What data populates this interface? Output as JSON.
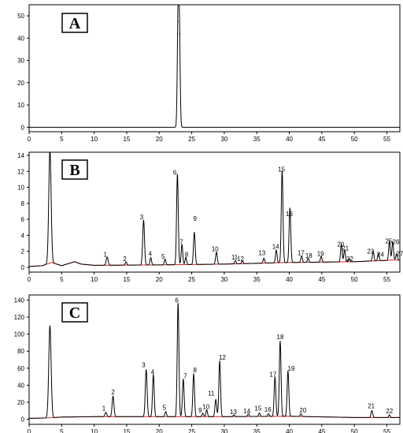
{
  "chart_data": [
    {
      "type": "line",
      "panel_label": "A",
      "xlim": [
        0,
        57
      ],
      "ylim": [
        -2,
        55
      ],
      "x_ticks": [
        0,
        5,
        10,
        15,
        20,
        25,
        30,
        35,
        40,
        45,
        50,
        55
      ],
      "y_ticks": [
        0,
        10,
        20,
        30,
        40,
        50
      ],
      "baseline": [],
      "peaks": [
        {
          "label": "",
          "x": 22.9,
          "height": 47.5,
          "width": 0.12
        },
        {
          "label": "",
          "x": 23.1,
          "height": 42.0,
          "width": 0.12
        }
      ]
    },
    {
      "type": "line",
      "panel_label": "B",
      "xlim": [
        0,
        57
      ],
      "ylim": [
        -0.6,
        14.4
      ],
      "x_ticks": [
        0,
        5,
        10,
        15,
        20,
        25,
        30,
        35,
        40,
        45,
        50,
        55
      ],
      "y_ticks": [
        0,
        2,
        4,
        6,
        8,
        10,
        12,
        14
      ],
      "baseline": [
        [
          0,
          0.1
        ],
        [
          2,
          0.2
        ],
        [
          3.5,
          0.6
        ],
        [
          5,
          0.2
        ],
        [
          7,
          0.7
        ],
        [
          8,
          0.4
        ],
        [
          10,
          0.25
        ],
        [
          20,
          0.3
        ],
        [
          30,
          0.4
        ],
        [
          40,
          0.6
        ],
        [
          50,
          0.7
        ],
        [
          56,
          0.9
        ],
        [
          57,
          0.9
        ]
      ],
      "peaks": [
        {
          "label": "",
          "x": 3.2,
          "height": 14.2,
          "width": 0.18
        },
        {
          "label": "1",
          "x": 12.0,
          "height": 1.0,
          "width": 0.15
        },
        {
          "label": "2",
          "x": 14.9,
          "height": 0.4,
          "width": 0.12
        },
        {
          "label": "3",
          "x": 17.6,
          "height": 5.6,
          "width": 0.14
        },
        {
          "label": "4",
          "x": 18.7,
          "height": 0.9,
          "width": 0.12
        },
        {
          "label": "5",
          "x": 20.9,
          "height": 0.7,
          "width": 0.12
        },
        {
          "label": "6",
          "x": 22.8,
          "height": 11.3,
          "width": 0.13
        },
        {
          "label": "7",
          "x": 23.5,
          "height": 2.5,
          "width": 0.12
        },
        {
          "label": "8",
          "x": 24.1,
          "height": 0.9,
          "width": 0.12
        },
        {
          "label": "9",
          "x": 25.4,
          "height": 4.0,
          "width": 0.13
        },
        {
          "label": "10",
          "x": 28.8,
          "height": 1.5,
          "width": 0.13
        },
        {
          "label": "11",
          "x": 31.7,
          "height": 0.4,
          "width": 0.12
        },
        {
          "label": "12",
          "x": 32.8,
          "height": 0.35,
          "width": 0.12
        },
        {
          "label": "13",
          "x": 36.1,
          "height": 0.6,
          "width": 0.12
        },
        {
          "label": "14",
          "x": 38.0,
          "height": 1.6,
          "width": 0.12
        },
        {
          "label": "15",
          "x": 38.9,
          "height": 11.5,
          "width": 0.13
        },
        {
          "label": "16",
          "x": 40.1,
          "height": 6.8,
          "width": 0.13
        },
        {
          "label": "17",
          "x": 41.9,
          "height": 0.8,
          "width": 0.12
        },
        {
          "label": "18",
          "x": 42.9,
          "height": 0.5,
          "width": 0.12
        },
        {
          "label": "19",
          "x": 44.9,
          "height": 0.7,
          "width": 0.12
        },
        {
          "label": "20",
          "x": 48.0,
          "height": 2.2,
          "width": 0.12
        },
        {
          "label": "21",
          "x": 48.5,
          "height": 1.5,
          "width": 0.12
        },
        {
          "label": "22",
          "x": 49.2,
          "height": 0.4,
          "width": 0.12
        },
        {
          "label": "23",
          "x": 52.9,
          "height": 1.2,
          "width": 0.12
        },
        {
          "label": "24",
          "x": 53.7,
          "height": 0.9,
          "width": 0.12
        },
        {
          "label": "25",
          "x": 55.4,
          "height": 2.4,
          "width": 0.12
        },
        {
          "label": "26",
          "x": 55.9,
          "height": 2.3,
          "width": 0.12
        },
        {
          "label": "27",
          "x": 56.5,
          "height": 0.8,
          "width": 0.12
        }
      ],
      "label_pos": {
        "1": [
          11.7,
          1.3
        ],
        "2": [
          14.7,
          0.8
        ],
        "3": [
          17.3,
          6.0
        ],
        "4": [
          18.6,
          1.4
        ],
        "5": [
          20.6,
          1.1
        ],
        "6": [
          22.4,
          11.6
        ],
        "7": [
          23.4,
          2.9
        ],
        "8": [
          24.2,
          1.3
        ],
        "9": [
          25.5,
          5.8
        ],
        "10": [
          28.6,
          2.0
        ],
        "11": [
          31.6,
          1.0
        ],
        "12": [
          32.5,
          0.8
        ],
        "13": [
          35.8,
          1.5
        ],
        "14": [
          37.9,
          2.3
        ],
        "15": [
          38.8,
          12.0
        ],
        "16": [
          40.0,
          6.4
        ],
        "17": [
          41.8,
          1.5
        ],
        "18": [
          43.0,
          1.2
        ],
        "19": [
          44.8,
          1.4
        ],
        "20": [
          47.9,
          2.6
        ],
        "21": [
          48.6,
          2.1
        ],
        "22": [
          49.3,
          0.8
        ],
        "23": [
          52.5,
          1.7
        ],
        "24": [
          54.0,
          1.3
        ],
        "25": [
          55.3,
          3.0
        ],
        "26": [
          56.4,
          2.9
        ],
        "27": [
          57.0,
          1.4
        ]
      }
    },
    {
      "type": "line",
      "panel_label": "C",
      "xlim": [
        0,
        57
      ],
      "ylim": [
        -6,
        146
      ],
      "x_ticks": [
        0,
        5,
        10,
        15,
        20,
        25,
        30,
        35,
        40,
        45,
        50,
        55
      ],
      "y_ticks": [
        0,
        20,
        40,
        60,
        80,
        100,
        120,
        140
      ],
      "baseline": [
        [
          0,
          1
        ],
        [
          3,
          1.5
        ],
        [
          5,
          2.5
        ],
        [
          10,
          3
        ],
        [
          20,
          3
        ],
        [
          30,
          3
        ],
        [
          40,
          3.5
        ],
        [
          50,
          2
        ],
        [
          57,
          2
        ]
      ],
      "peaks": [
        {
          "label": "",
          "x": 3.2,
          "height": 108,
          "width": 0.18
        },
        {
          "label": "1",
          "x": 11.8,
          "height": 5,
          "width": 0.14
        },
        {
          "label": "2",
          "x": 12.9,
          "height": 24,
          "width": 0.14
        },
        {
          "label": "3",
          "x": 18.0,
          "height": 55,
          "width": 0.14
        },
        {
          "label": "4",
          "x": 19.1,
          "height": 49,
          "width": 0.13
        },
        {
          "label": "5",
          "x": 21.0,
          "height": 6,
          "width": 0.12
        },
        {
          "label": "6",
          "x": 22.9,
          "height": 133,
          "width": 0.13
        },
        {
          "label": "7",
          "x": 23.7,
          "height": 44,
          "width": 0.13
        },
        {
          "label": "8",
          "x": 25.3,
          "height": 50,
          "width": 0.13
        },
        {
          "label": "9",
          "x": 26.7,
          "height": 4,
          "width": 0.12
        },
        {
          "label": "10",
          "x": 27.3,
          "height": 8,
          "width": 0.12
        },
        {
          "label": "11",
          "x": 28.7,
          "height": 20,
          "width": 0.13
        },
        {
          "label": "12",
          "x": 29.3,
          "height": 65,
          "width": 0.13
        },
        {
          "label": "13",
          "x": 31.5,
          "height": 2,
          "width": 0.12
        },
        {
          "label": "14",
          "x": 33.7,
          "height": 3,
          "width": 0.12
        },
        {
          "label": "15",
          "x": 35.4,
          "height": 4,
          "width": 0.12
        },
        {
          "label": "16",
          "x": 36.8,
          "height": 3,
          "width": 0.12
        },
        {
          "label": "17",
          "x": 37.8,
          "height": 46,
          "width": 0.13
        },
        {
          "label": "18",
          "x": 38.6,
          "height": 88,
          "width": 0.13
        },
        {
          "label": "19",
          "x": 39.8,
          "height": 53,
          "width": 0.13
        },
        {
          "label": "20",
          "x": 41.8,
          "height": 3,
          "width": 0.12
        },
        {
          "label": "21",
          "x": 52.7,
          "height": 8,
          "width": 0.13
        },
        {
          "label": "22",
          "x": 55.4,
          "height": 3,
          "width": 0.12
        }
      ],
      "label_pos": {
        "1": [
          11.5,
          10
        ],
        "2": [
          12.9,
          29
        ],
        "3": [
          17.6,
          61
        ],
        "4": [
          19.0,
          53
        ],
        "5": [
          20.8,
          11
        ],
        "6": [
          22.7,
          137
        ],
        "7": [
          24.0,
          48
        ],
        "8": [
          25.5,
          55
        ],
        "9": [
          26.3,
          8
        ],
        "10": [
          27.2,
          12
        ],
        "11": [
          28.0,
          28
        ],
        "12": [
          29.7,
          70
        ],
        "13": [
          31.4,
          6
        ],
        "14": [
          33.5,
          7
        ],
        "15": [
          35.2,
          10
        ],
        "16": [
          36.7,
          9
        ],
        "17": [
          37.5,
          50
        ],
        "18": [
          38.6,
          94
        ],
        "19": [
          40.3,
          57
        ],
        "20": [
          42.1,
          8
        ],
        "21": [
          52.6,
          13
        ],
        "22": [
          55.4,
          7
        ]
      }
    }
  ]
}
